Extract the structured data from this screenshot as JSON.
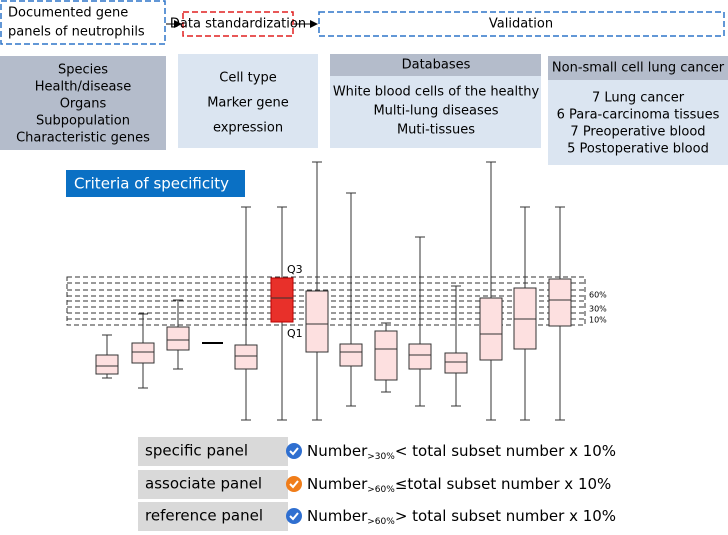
{
  "flow": [
    {
      "lines": [
        "Documented gene",
        "panels of neutrophils"
      ]
    },
    {
      "lines": [
        "Data standardization"
      ]
    },
    {
      "lines": [
        "Validation"
      ]
    }
  ],
  "panels": [
    {
      "items": [
        "Species",
        "Health/disease",
        "Organs",
        "Subpopulation",
        "Characteristic genes"
      ]
    },
    {
      "items": [
        "Cell type",
        "Marker gene",
        "expression"
      ]
    },
    {
      "header": "Databases",
      "items": [
        "White blood cells of the healthy",
        "Multi-lung diseases",
        "Muti-tissues"
      ]
    },
    {
      "header": "Non-small cell lung cancer",
      "items": [
        "7 Lung cancer",
        "6 Para-carcinoma tissues",
        "7 Preoperative blood",
        "5 Postoperative blood"
      ]
    }
  ],
  "criteria": {
    "title": "Criteria of specificity",
    "q3": "Q3",
    "q1": "Q1",
    "levels": [
      "60%",
      "30%",
      "10%"
    ]
  },
  "rules": [
    {
      "name": "specific panel",
      "lead": "Number",
      "sub": ">30%",
      "rest": "< total subset number x 10%"
    },
    {
      "name": "associate panel",
      "lead": "Number",
      "sub": ">60%",
      "rest": "≤total subset number x 10%"
    },
    {
      "name": "reference panel",
      "lead": "Number",
      "sub": ">60%",
      "rest": "> total subset number x 10%"
    }
  ]
}
